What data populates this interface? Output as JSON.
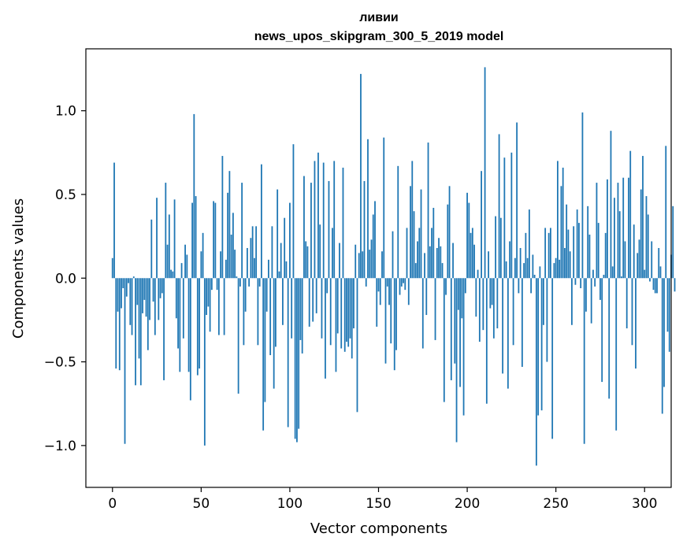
{
  "chart_data": {
    "type": "bar",
    "title": "ливии",
    "subtitle": "news_upos_skipgram_300_5_2019 model",
    "xlabel": "Vector components",
    "ylabel": "Components values",
    "xlim": [
      -15,
      315
    ],
    "ylim": [
      -1.25,
      1.37
    ],
    "xticks": [
      0,
      50,
      100,
      150,
      200,
      250,
      300
    ],
    "xtick_labels": [
      "0",
      "50",
      "100",
      "150",
      "200",
      "250",
      "300"
    ],
    "yticks": [
      -1.0,
      -0.5,
      0.0,
      0.5,
      1.0
    ],
    "ytick_labels": [
      "−1.0",
      "−0.5",
      "0.0",
      "0.5",
      "1.0"
    ],
    "grid": false,
    "bar_color": "#1f77b4",
    "values": [
      0.12,
      0.69,
      -0.54,
      -0.2,
      -0.55,
      -0.18,
      -0.06,
      -0.99,
      -0.11,
      -0.03,
      -0.28,
      -0.34,
      0.01,
      -0.64,
      -0.16,
      -0.48,
      -0.64,
      -0.21,
      -0.13,
      -0.23,
      -0.43,
      -0.25,
      0.35,
      -0.14,
      -0.34,
      0.48,
      -0.25,
      -0.12,
      -0.09,
      -0.61,
      0.57,
      0.2,
      0.38,
      0.05,
      0.04,
      0.47,
      -0.24,
      -0.42,
      -0.56,
      0.09,
      -0.36,
      0.2,
      0.14,
      -0.56,
      -0.73,
      0.45,
      0.98,
      0.49,
      -0.58,
      -0.54,
      0.16,
      0.27,
      -1.0,
      -0.22,
      -0.17,
      -0.32,
      -0.07,
      0.46,
      0.45,
      -0.07,
      -0.34,
      0.16,
      0.73,
      -0.34,
      0.11,
      0.51,
      0.64,
      0.26,
      0.39,
      0.17,
      0.01,
      -0.69,
      -0.05,
      0.57,
      -0.4,
      -0.2,
      0.18,
      -0.05,
      0.24,
      0.31,
      0.12,
      0.31,
      -0.4,
      -0.05,
      0.68,
      -0.91,
      -0.74,
      -0.2,
      0.11,
      -0.46,
      0.31,
      -0.66,
      -0.41,
      0.53,
      0.04,
      0.21,
      -0.28,
      0.36,
      0.1,
      -0.89,
      0.45,
      -0.36,
      0.8,
      -0.96,
      -0.98,
      -0.9,
      -0.37,
      -0.45,
      0.61,
      0.22,
      0.19,
      -0.29,
      0.57,
      -0.26,
      0.7,
      -0.21,
      0.75,
      0.32,
      -0.36,
      0.69,
      -0.6,
      -0.09,
      0.58,
      -0.4,
      0.3,
      0.7,
      -0.56,
      -0.33,
      0.21,
      -0.42,
      0.66,
      -0.44,
      -0.38,
      -0.41,
      -0.36,
      -0.48,
      -0.3,
      0.2,
      -0.8,
      0.15,
      1.22,
      0.16,
      0.58,
      -0.05,
      0.83,
      0.17,
      0.23,
      0.38,
      0.46,
      -0.29,
      -0.08,
      -0.16,
      0.16,
      0.84,
      -0.51,
      -0.05,
      -0.16,
      -0.39,
      0.28,
      -0.55,
      -0.43,
      0.67,
      -0.1,
      -0.05,
      -0.03,
      -0.07,
      0.3,
      -0.16,
      0.55,
      0.7,
      0.4,
      0.09,
      0.22,
      0.3,
      0.53,
      -0.42,
      0.15,
      -0.22,
      0.81,
      0.19,
      0.3,
      0.42,
      -0.37,
      0.18,
      0.24,
      0.19,
      0.09,
      -0.74,
      -0.1,
      0.44,
      0.55,
      -0.61,
      0.21,
      -0.51,
      -0.98,
      -0.19,
      -0.65,
      -0.24,
      -0.82,
      -0.09,
      0.51,
      0.45,
      0.27,
      0.3,
      0.2,
      -0.23,
      0.05,
      -0.38,
      0.64,
      -0.31,
      1.26,
      -0.75,
      0.16,
      -0.18,
      -0.16,
      -0.36,
      0.37,
      -0.3,
      0.86,
      0.36,
      -0.57,
      0.72,
      0.1,
      -0.66,
      0.22,
      0.75,
      -0.4,
      0.12,
      0.93,
      -0.09,
      0.18,
      -0.53,
      0.09,
      0.27,
      0.12,
      0.41,
      -0.09,
      0.14,
      0.02,
      -1.12,
      -0.82,
      0.07,
      -0.79,
      -0.28,
      0.3,
      -0.5,
      0.27,
      0.3,
      -0.96,
      0.09,
      0.12,
      0.7,
      0.11,
      0.55,
      0.66,
      0.18,
      0.44,
      0.29,
      0.16,
      -0.28,
      0.31,
      -0.04,
      0.41,
      0.33,
      -0.06,
      0.99,
      -0.99,
      -0.2,
      0.43,
      0.26,
      -0.27,
      0.05,
      -0.05,
      0.57,
      0.33,
      -0.13,
      -0.62,
      0.02,
      0.27,
      0.59,
      -0.72,
      0.88,
      0.07,
      0.48,
      -0.91,
      0.57,
      0.4,
      0.01,
      0.6,
      0.22,
      -0.3,
      0.6,
      0.76,
      -0.4,
      0.32,
      -0.54,
      0.15,
      0.23,
      0.53,
      0.73,
      0.05,
      0.49,
      0.38,
      -0.02,
      0.22,
      -0.07,
      -0.09,
      -0.09,
      0.18,
      0.07,
      -0.81,
      -0.65,
      0.79,
      -0.32,
      -0.44,
      0.14,
      0.43,
      -0.08
    ]
  }
}
